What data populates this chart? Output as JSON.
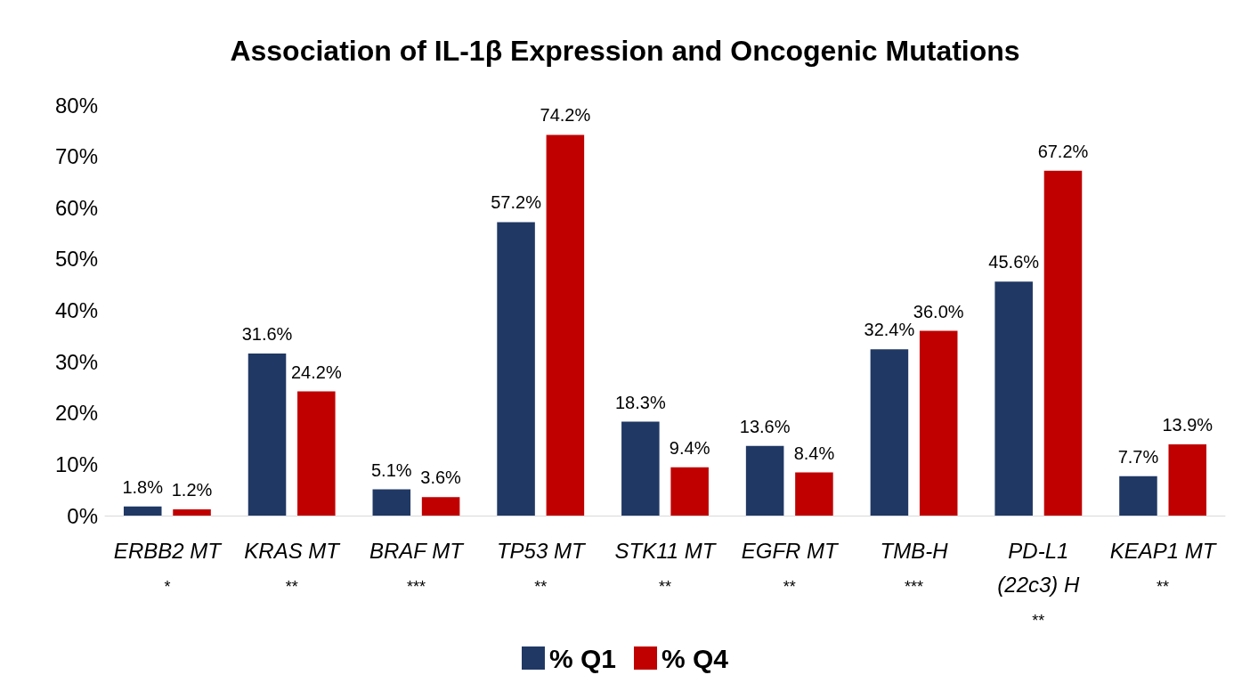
{
  "chart_data": {
    "type": "bar",
    "title": "Association of IL-1β Expression and Oncogenic Mutations",
    "categories": [
      "ERBB2 MT\n*",
      "KRAS MT\n**",
      "BRAF MT\n***",
      "TP53 MT\n**",
      "STK11 MT\n**",
      "EGFR MT\n**",
      "TMB-H\n***",
      "PD-L1\n(22c3) H\n**",
      "KEAP1 MT\n**"
    ],
    "series": [
      {
        "name": "% Q1",
        "color": "#203864",
        "values": [
          1.8,
          31.6,
          5.1,
          57.2,
          18.3,
          13.6,
          32.4,
          45.6,
          7.7
        ],
        "value_labels": [
          "1.8%",
          "31.6%",
          "5.1%",
          "57.2%",
          "18.3%",
          "13.6%",
          "32.4%",
          "45.6%",
          "7.7%"
        ]
      },
      {
        "name": "% Q4",
        "color": "#c00000",
        "values": [
          1.2,
          24.2,
          3.6,
          74.2,
          9.4,
          8.4,
          36.0,
          67.2,
          13.9
        ],
        "value_labels": [
          "1.2%",
          "24.2%",
          "3.6%",
          "74.2%",
          "9.4%",
          "8.4%",
          "36.0%",
          "67.2%",
          "13.9%"
        ]
      }
    ],
    "ylim": [
      0,
      80
    ],
    "yticks": [
      {
        "value": 0,
        "label": "0%"
      },
      {
        "value": 10,
        "label": "10%"
      },
      {
        "value": 20,
        "label": "20%"
      },
      {
        "value": 30,
        "label": "30%"
      },
      {
        "value": 40,
        "label": "40%"
      },
      {
        "value": 50,
        "label": "50%"
      },
      {
        "value": 60,
        "label": "60%"
      },
      {
        "value": 70,
        "label": "70%"
      },
      {
        "value": 80,
        "label": "80%"
      }
    ],
    "grid": false,
    "legend": "bottom"
  }
}
